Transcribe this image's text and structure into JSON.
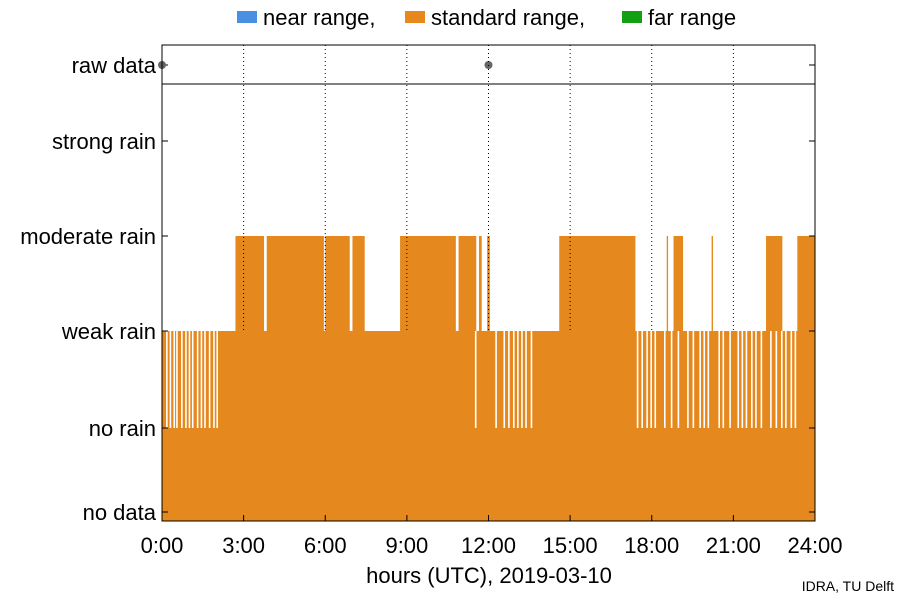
{
  "legend": {
    "items": [
      {
        "label": "near range,",
        "color": "#4a90e2"
      },
      {
        "label": "standard range,",
        "color": "#e5881d"
      },
      {
        "label": "far range",
        "color": "#12a012"
      }
    ]
  },
  "credit": "IDRA, TU Delft",
  "chart_data": {
    "type": "area",
    "xlabel": "hours (UTC), 2019-03-10",
    "x_ticks": [
      "0:00",
      "3:00",
      "6:00",
      "9:00",
      "12:00",
      "15:00",
      "18:00",
      "21:00",
      "24:00"
    ],
    "xlim": [
      0,
      24
    ],
    "y_categories": [
      "no data",
      "no rain",
      "weak rain",
      "moderate rain",
      "strong rain"
    ],
    "raw_data_label": "raw data",
    "raw_data_points": [
      0.0,
      12.0
    ],
    "grid": "vertical dotted",
    "legend_position": "top",
    "series": [
      {
        "name": "standard range",
        "color": "#e5881d",
        "baseline_level": 2,
        "segments": [
          {
            "start": 2.7,
            "end": 3.75,
            "level": 3
          },
          {
            "start": 3.85,
            "end": 5.95,
            "level": 3
          },
          {
            "start": 6.0,
            "end": 6.9,
            "level": 3
          },
          {
            "start": 7.0,
            "end": 7.45,
            "level": 3
          },
          {
            "start": 8.75,
            "end": 10.8,
            "level": 3
          },
          {
            "start": 10.9,
            "end": 11.55,
            "level": 3
          },
          {
            "start": 11.65,
            "end": 11.75,
            "level": 3
          },
          {
            "start": 11.95,
            "end": 12.05,
            "level": 3
          },
          {
            "start": 14.6,
            "end": 17.4,
            "level": 3
          },
          {
            "start": 18.55,
            "end": 18.6,
            "level": 3
          },
          {
            "start": 18.8,
            "end": 19.15,
            "level": 3
          },
          {
            "start": 20.2,
            "end": 20.25,
            "level": 3
          },
          {
            "start": 22.2,
            "end": 22.8,
            "level": 3
          },
          {
            "start": 23.35,
            "end": 24.0,
            "level": 3
          }
        ],
        "gaps_to_no_rain": [
          0.15,
          0.28,
          0.42,
          0.52,
          0.7,
          0.85,
          0.98,
          1.1,
          1.28,
          1.42,
          1.55,
          1.72,
          1.88,
          2.0,
          11.5,
          12.25,
          12.55,
          12.72,
          12.9,
          13.05,
          13.2,
          13.35,
          13.55,
          17.45,
          17.62,
          17.8,
          17.95,
          18.1,
          18.45,
          18.7,
          18.95,
          19.3,
          19.5,
          19.75,
          19.9,
          20.05,
          20.45,
          20.6,
          20.85,
          21.15,
          21.3,
          21.45,
          21.65,
          21.8,
          22.0,
          22.35,
          22.55,
          22.75,
          22.9,
          23.1,
          23.25
        ]
      }
    ]
  }
}
